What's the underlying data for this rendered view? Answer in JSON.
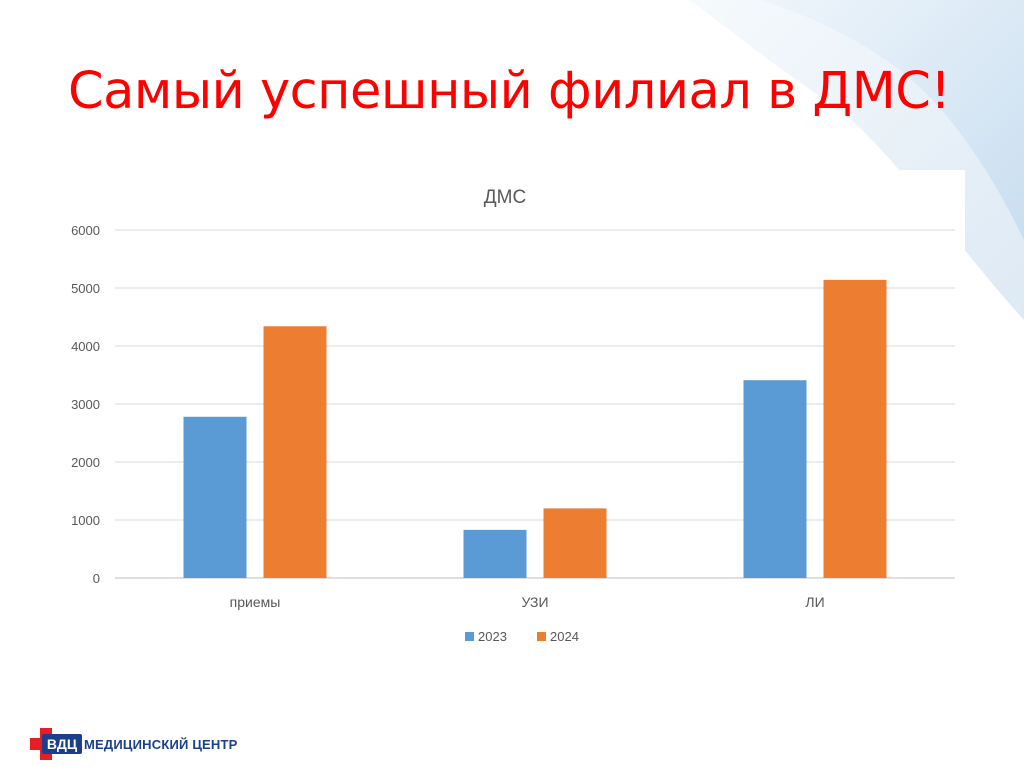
{
  "slide": {
    "title": "Самый успешный филиал в ДМС!"
  },
  "brand": {
    "logo_letters": "ВДЦ",
    "name": "МЕДИЦИНСКИЙ ЦЕНТР",
    "colors": {
      "navy": "#1b3f8b",
      "red": "#e31e24",
      "title_red": "#ff0000"
    }
  },
  "chart_data": {
    "type": "bar",
    "title": "ДМС",
    "categories": [
      "приемы",
      "УЗИ",
      "ЛИ"
    ],
    "series": [
      {
        "name": "2023",
        "values": [
          2780,
          830,
          3410
        ],
        "color": "#5b9bd5"
      },
      {
        "name": "2024",
        "values": [
          4340,
          1200,
          5140
        ],
        "color": "#ed7d31"
      }
    ],
    "ylim": [
      0,
      6000
    ],
    "yticks": [
      0,
      1000,
      2000,
      3000,
      4000,
      5000,
      6000
    ],
    "grid": true,
    "legend": "bottom"
  }
}
